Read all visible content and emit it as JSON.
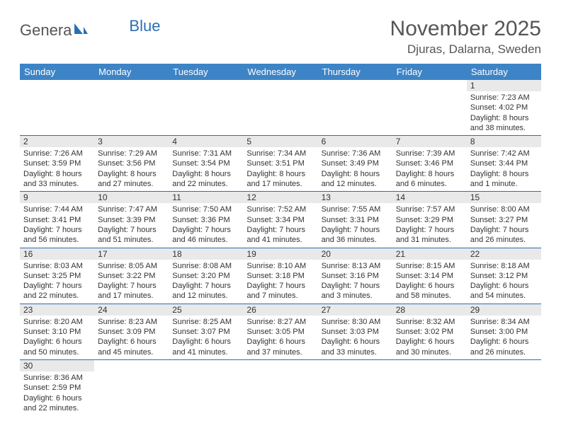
{
  "logo": {
    "main": "Genera",
    "blue": "Blue"
  },
  "title": "November 2025",
  "location": "Djuras, Dalarna, Sweden",
  "colors": {
    "header_bg": "#3d84c6",
    "cell_border": "#2a6fb5",
    "daynum_bg": "#e9e9e9",
    "title_color": "#555555",
    "text_color": "#333333"
  },
  "weekdays": [
    "Sunday",
    "Monday",
    "Tuesday",
    "Wednesday",
    "Thursday",
    "Friday",
    "Saturday"
  ],
  "weeks": [
    [
      null,
      null,
      null,
      null,
      null,
      null,
      {
        "n": "1",
        "sr": "Sunrise: 7:23 AM",
        "ss": "Sunset: 4:02 PM",
        "dl": "Daylight: 8 hours and 38 minutes."
      }
    ],
    [
      {
        "n": "2",
        "sr": "Sunrise: 7:26 AM",
        "ss": "Sunset: 3:59 PM",
        "dl": "Daylight: 8 hours and 33 minutes."
      },
      {
        "n": "3",
        "sr": "Sunrise: 7:29 AM",
        "ss": "Sunset: 3:56 PM",
        "dl": "Daylight: 8 hours and 27 minutes."
      },
      {
        "n": "4",
        "sr": "Sunrise: 7:31 AM",
        "ss": "Sunset: 3:54 PM",
        "dl": "Daylight: 8 hours and 22 minutes."
      },
      {
        "n": "5",
        "sr": "Sunrise: 7:34 AM",
        "ss": "Sunset: 3:51 PM",
        "dl": "Daylight: 8 hours and 17 minutes."
      },
      {
        "n": "6",
        "sr": "Sunrise: 7:36 AM",
        "ss": "Sunset: 3:49 PM",
        "dl": "Daylight: 8 hours and 12 minutes."
      },
      {
        "n": "7",
        "sr": "Sunrise: 7:39 AM",
        "ss": "Sunset: 3:46 PM",
        "dl": "Daylight: 8 hours and 6 minutes."
      },
      {
        "n": "8",
        "sr": "Sunrise: 7:42 AM",
        "ss": "Sunset: 3:44 PM",
        "dl": "Daylight: 8 hours and 1 minute."
      }
    ],
    [
      {
        "n": "9",
        "sr": "Sunrise: 7:44 AM",
        "ss": "Sunset: 3:41 PM",
        "dl": "Daylight: 7 hours and 56 minutes."
      },
      {
        "n": "10",
        "sr": "Sunrise: 7:47 AM",
        "ss": "Sunset: 3:39 PM",
        "dl": "Daylight: 7 hours and 51 minutes."
      },
      {
        "n": "11",
        "sr": "Sunrise: 7:50 AM",
        "ss": "Sunset: 3:36 PM",
        "dl": "Daylight: 7 hours and 46 minutes."
      },
      {
        "n": "12",
        "sr": "Sunrise: 7:52 AM",
        "ss": "Sunset: 3:34 PM",
        "dl": "Daylight: 7 hours and 41 minutes."
      },
      {
        "n": "13",
        "sr": "Sunrise: 7:55 AM",
        "ss": "Sunset: 3:31 PM",
        "dl": "Daylight: 7 hours and 36 minutes."
      },
      {
        "n": "14",
        "sr": "Sunrise: 7:57 AM",
        "ss": "Sunset: 3:29 PM",
        "dl": "Daylight: 7 hours and 31 minutes."
      },
      {
        "n": "15",
        "sr": "Sunrise: 8:00 AM",
        "ss": "Sunset: 3:27 PM",
        "dl": "Daylight: 7 hours and 26 minutes."
      }
    ],
    [
      {
        "n": "16",
        "sr": "Sunrise: 8:03 AM",
        "ss": "Sunset: 3:25 PM",
        "dl": "Daylight: 7 hours and 22 minutes."
      },
      {
        "n": "17",
        "sr": "Sunrise: 8:05 AM",
        "ss": "Sunset: 3:22 PM",
        "dl": "Daylight: 7 hours and 17 minutes."
      },
      {
        "n": "18",
        "sr": "Sunrise: 8:08 AM",
        "ss": "Sunset: 3:20 PM",
        "dl": "Daylight: 7 hours and 12 minutes."
      },
      {
        "n": "19",
        "sr": "Sunrise: 8:10 AM",
        "ss": "Sunset: 3:18 PM",
        "dl": "Daylight: 7 hours and 7 minutes."
      },
      {
        "n": "20",
        "sr": "Sunrise: 8:13 AM",
        "ss": "Sunset: 3:16 PM",
        "dl": "Daylight: 7 hours and 3 minutes."
      },
      {
        "n": "21",
        "sr": "Sunrise: 8:15 AM",
        "ss": "Sunset: 3:14 PM",
        "dl": "Daylight: 6 hours and 58 minutes."
      },
      {
        "n": "22",
        "sr": "Sunrise: 8:18 AM",
        "ss": "Sunset: 3:12 PM",
        "dl": "Daylight: 6 hours and 54 minutes."
      }
    ],
    [
      {
        "n": "23",
        "sr": "Sunrise: 8:20 AM",
        "ss": "Sunset: 3:10 PM",
        "dl": "Daylight: 6 hours and 50 minutes."
      },
      {
        "n": "24",
        "sr": "Sunrise: 8:23 AM",
        "ss": "Sunset: 3:09 PM",
        "dl": "Daylight: 6 hours and 45 minutes."
      },
      {
        "n": "25",
        "sr": "Sunrise: 8:25 AM",
        "ss": "Sunset: 3:07 PM",
        "dl": "Daylight: 6 hours and 41 minutes."
      },
      {
        "n": "26",
        "sr": "Sunrise: 8:27 AM",
        "ss": "Sunset: 3:05 PM",
        "dl": "Daylight: 6 hours and 37 minutes."
      },
      {
        "n": "27",
        "sr": "Sunrise: 8:30 AM",
        "ss": "Sunset: 3:03 PM",
        "dl": "Daylight: 6 hours and 33 minutes."
      },
      {
        "n": "28",
        "sr": "Sunrise: 8:32 AM",
        "ss": "Sunset: 3:02 PM",
        "dl": "Daylight: 6 hours and 30 minutes."
      },
      {
        "n": "29",
        "sr": "Sunrise: 8:34 AM",
        "ss": "Sunset: 3:00 PM",
        "dl": "Daylight: 6 hours and 26 minutes."
      }
    ],
    [
      {
        "n": "30",
        "sr": "Sunrise: 8:36 AM",
        "ss": "Sunset: 2:59 PM",
        "dl": "Daylight: 6 hours and 22 minutes."
      },
      null,
      null,
      null,
      null,
      null,
      null
    ]
  ]
}
